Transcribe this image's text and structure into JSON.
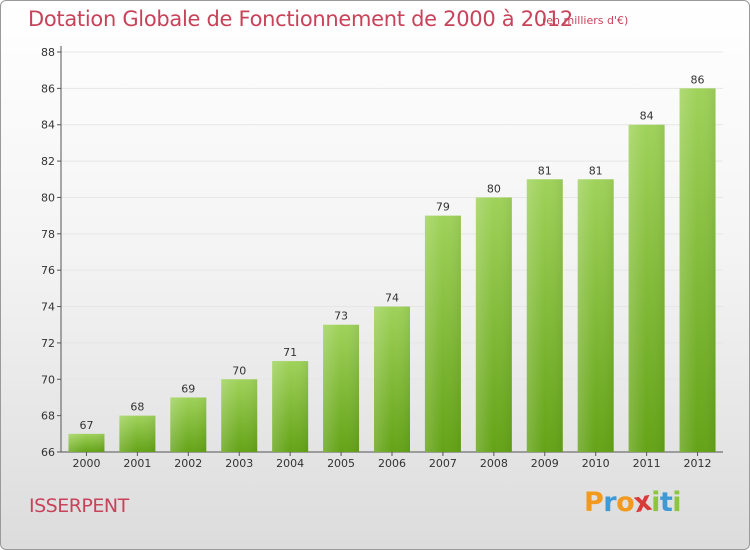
{
  "header": {
    "title": "Dotation Globale de Fonctionnement de 2000 à 2012",
    "unit": "(en milliers d'€)"
  },
  "footer": {
    "commune": "ISSERPENT",
    "logo_letters": [
      "P",
      "r",
      "o",
      "x",
      "i",
      "t",
      "i"
    ],
    "logo_colors": [
      "#f29a1f",
      "#3d9ad6",
      "#f29a1f",
      "#d93a3a",
      "#8cc63f",
      "#3d9ad6",
      "#8cc63f"
    ]
  },
  "colors": {
    "title": "#c8435a",
    "bar_light": "#9fd25a",
    "bar_dark": "#64a317",
    "axis": "#555555",
    "grid": "#e6e6e6"
  },
  "chart_data": {
    "type": "bar",
    "title": "Dotation Globale de Fonctionnement de 2000 à 2012",
    "subtitle": "(en milliers d'€)",
    "categories": [
      "2000",
      "2001",
      "2002",
      "2003",
      "2004",
      "2005",
      "2006",
      "2007",
      "2008",
      "2009",
      "2010",
      "2011",
      "2012"
    ],
    "values": [
      67,
      68,
      69,
      70,
      71,
      73,
      74,
      79,
      80,
      81,
      81,
      84,
      86
    ],
    "ylim": [
      66,
      88
    ],
    "yticks": [
      66,
      68,
      70,
      72,
      74,
      76,
      78,
      80,
      82,
      84,
      86,
      88
    ],
    "xlabel": "",
    "ylabel": "",
    "grid": true
  }
}
